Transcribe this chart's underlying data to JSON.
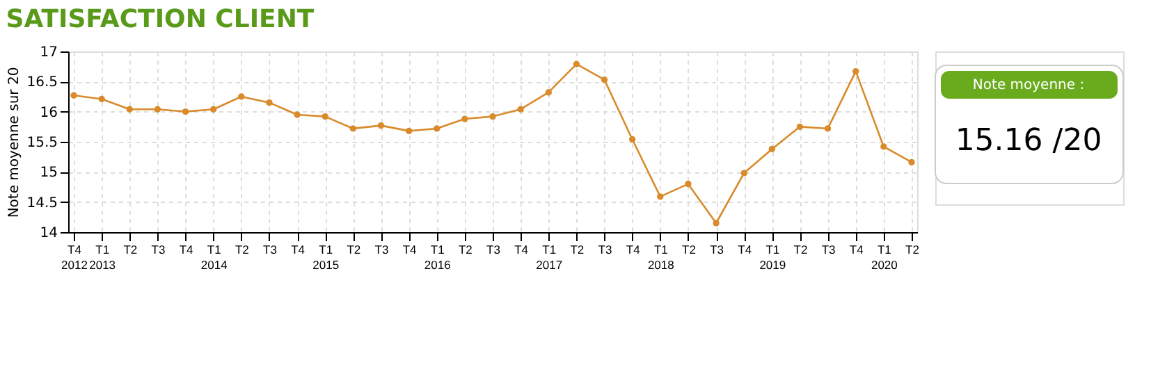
{
  "chart_data": {
    "type": "line",
    "title": "SATISFACTION CLIENT",
    "ylabel": "Note moyenne sur 20",
    "categories": [
      "T4 2012",
      "T1 2013",
      "T2",
      "T3",
      "T4",
      "T1 2014",
      "T2",
      "T3",
      "T4",
      "T1 2015",
      "T2",
      "T3",
      "T4",
      "T1 2016",
      "T2",
      "T3",
      "T4",
      "T1 2017",
      "T2",
      "T3",
      "T4",
      "T1 2018",
      "T2",
      "T3",
      "T4",
      "T1 2019",
      "T2",
      "T3",
      "T4",
      "T1 2020",
      "T2"
    ],
    "series": [
      {
        "color": "#d98b2b",
        "values": [
          16.27,
          16.21,
          16.04,
          16.04,
          16.0,
          16.04,
          16.25,
          16.15,
          15.95,
          15.92,
          15.72,
          15.77,
          15.68,
          15.72,
          15.88,
          15.92,
          16.04,
          16.32,
          16.79,
          16.53,
          15.54,
          14.59,
          14.8,
          14.15,
          14.98,
          15.38,
          15.75,
          15.72,
          16.67,
          15.42,
          15.16
        ]
      }
    ],
    "ylim": [
      14,
      17
    ],
    "yticks": [
      14,
      14.5,
      15,
      15.5,
      16,
      16.5,
      17
    ],
    "grid": true,
    "marker": "circle",
    "line_style": "solid",
    "annotations": [
      "Note moyenne :",
      "15.16 /20"
    ]
  }
}
